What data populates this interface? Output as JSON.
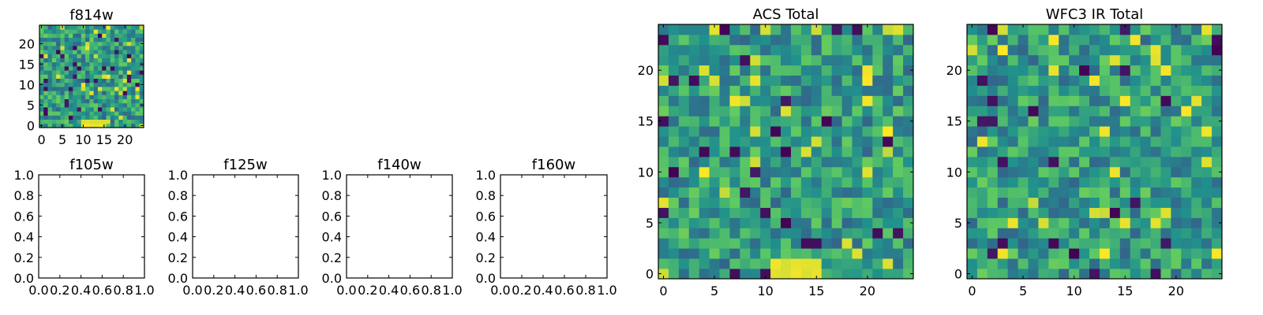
{
  "colormap": [
    "#440154",
    "#3b528b",
    "#21918c",
    "#5ec962",
    "#fde725"
  ],
  "chart_data": [
    {
      "id": "f814w",
      "type": "heatmap",
      "title": "f814w",
      "grid_size": 25,
      "xlim": [
        -0.5,
        24.5
      ],
      "ylim": [
        -0.5,
        24.5
      ],
      "xticks": [
        0,
        5,
        10,
        15,
        20
      ],
      "yticks": [
        0,
        5,
        10,
        15,
        20
      ],
      "xtick_labels": [
        "0",
        "5",
        "10",
        "15",
        "20"
      ],
      "ytick_labels": [
        "0",
        "5",
        "10",
        "15",
        "20"
      ],
      "description": "25x25 noise image with a bright yellow patch near x 10-15, y 0-1"
    },
    {
      "id": "f105w",
      "type": "empty",
      "title": "f105w",
      "xlim": [
        0,
        1
      ],
      "ylim": [
        0,
        1
      ],
      "xtick_labels": [
        "0.0",
        "0.2",
        "0.4",
        "0.6",
        "0.8",
        "1.0"
      ],
      "ytick_labels": [
        "0.0",
        "0.2",
        "0.4",
        "0.6",
        "0.8",
        "1.0"
      ]
    },
    {
      "id": "f125w",
      "type": "empty",
      "title": "f125w",
      "xlim": [
        0,
        1
      ],
      "ylim": [
        0,
        1
      ],
      "xtick_labels": [
        "0.0",
        "0.2",
        "0.4",
        "0.6",
        "0.8",
        "1.0"
      ],
      "ytick_labels": [
        "0.0",
        "0.2",
        "0.4",
        "0.6",
        "0.8",
        "1.0"
      ]
    },
    {
      "id": "f140w",
      "type": "empty",
      "title": "f140w",
      "xlim": [
        0,
        1
      ],
      "ylim": [
        0,
        1
      ],
      "xtick_labels": [
        "0.0",
        "0.2",
        "0.4",
        "0.6",
        "0.8",
        "1.0"
      ],
      "ytick_labels": [
        "0.0",
        "0.2",
        "0.4",
        "0.6",
        "0.8",
        "1.0"
      ]
    },
    {
      "id": "f160w",
      "type": "empty",
      "title": "f160w",
      "xlim": [
        0,
        1
      ],
      "ylim": [
        0,
        1
      ],
      "xtick_labels": [
        "0.0",
        "0.2",
        "0.4",
        "0.6",
        "0.8",
        "1.0"
      ],
      "ytick_labels": [
        "0.0",
        "0.2",
        "0.4",
        "0.6",
        "0.8",
        "1.0"
      ]
    },
    {
      "id": "acs_total",
      "type": "heatmap",
      "title": "ACS Total",
      "grid_size": 25,
      "xlim": [
        -0.5,
        24.5
      ],
      "ylim": [
        -0.5,
        24.5
      ],
      "xticks": [
        0,
        5,
        10,
        15,
        20
      ],
      "yticks": [
        0,
        5,
        10,
        15,
        20
      ],
      "xtick_labels": [
        "0",
        "5",
        "10",
        "15",
        "20"
      ],
      "ytick_labels": [
        "0",
        "5",
        "10",
        "15",
        "20"
      ],
      "description": "25x25 noise image, bright patch near x 11-15, y 0-1, dark pixels scattered"
    },
    {
      "id": "wfc3_ir_total",
      "type": "heatmap",
      "title": "WFC3 IR Total",
      "grid_size": 25,
      "xlim": [
        -0.5,
        24.5
      ],
      "ylim": [
        -0.5,
        24.5
      ],
      "xticks": [
        0,
        5,
        10,
        15,
        20
      ],
      "yticks": [
        0,
        5,
        10,
        15,
        20
      ],
      "xtick_labels": [
        "0",
        "5",
        "10",
        "15",
        "20"
      ],
      "ytick_labels": [
        "0",
        "5",
        "10",
        "15",
        "20"
      ],
      "description": "25x25 noise image with scattered bright and dark pixels"
    }
  ]
}
